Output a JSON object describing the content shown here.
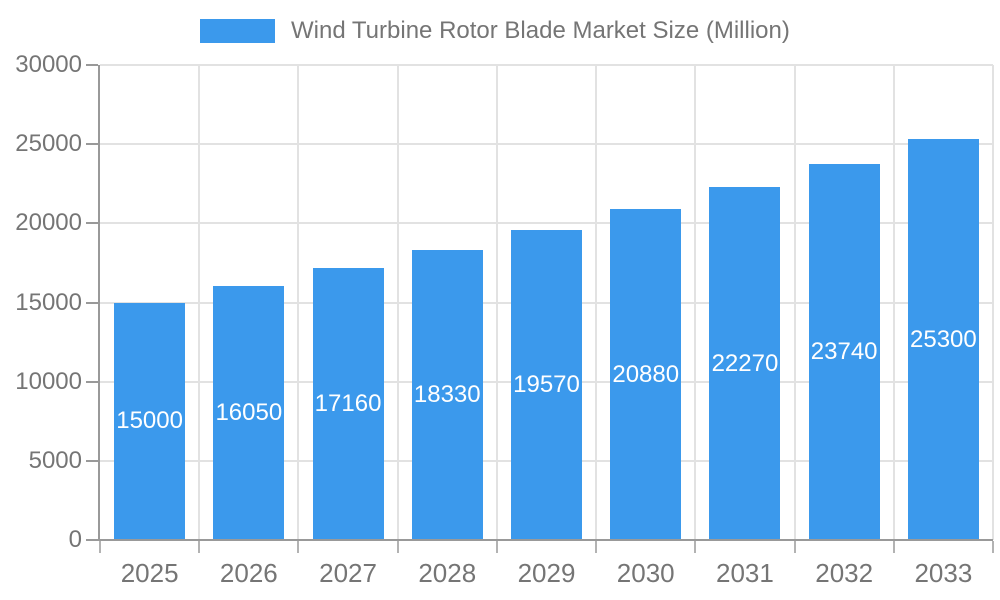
{
  "legend": {
    "label": "Wind Turbine Rotor Blade Market Size (Million)"
  },
  "chart_data": {
    "type": "bar",
    "title": "Wind Turbine Rotor Blade Market Size (Million)",
    "series_name": "Wind Turbine Rotor Blade Market Size (Million)",
    "categories": [
      "2025",
      "2026",
      "2027",
      "2028",
      "2029",
      "2030",
      "2031",
      "2032",
      "2033"
    ],
    "values": [
      15000,
      16050,
      17160,
      18330,
      19570,
      20880,
      22270,
      23740,
      25300
    ],
    "bar_value_labels": [
      "15000",
      "16050",
      "17160",
      "18330",
      "19570",
      "20880",
      "22270",
      "23740",
      "25300"
    ],
    "xlabel": "",
    "ylabel": "",
    "ylim": [
      0,
      30000
    ],
    "ytick_step": 5000,
    "yticks": [
      0,
      5000,
      10000,
      15000,
      20000,
      25000,
      30000
    ],
    "ytick_labels": [
      "0",
      "5000",
      "10000",
      "15000",
      "20000",
      "25000",
      "30000"
    ],
    "grid": true,
    "legend_position": "top-center"
  },
  "colors": {
    "bar": "#3B99EC",
    "bar_label": "#FFFFFF",
    "grid": "#E2E2E2",
    "axis": "#999999",
    "x_tick": "#B3B3B3",
    "text": "#757575",
    "background": "#FFFFFF"
  }
}
